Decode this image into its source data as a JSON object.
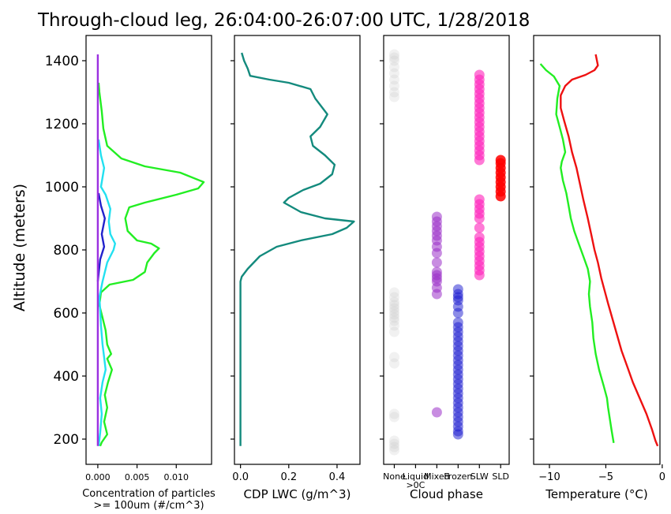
{
  "title": "Through-cloud leg, 26:04:00-26:07:00 UTC, 1/28/2018",
  "ylabel": "Altitude (meters)",
  "chart_data": [
    {
      "type": "line",
      "panel": "concentration",
      "xlabel_lines": [
        "Concentration of particles",
        ">= 100um (#/cm^3)"
      ],
      "xlim": [
        -0.0015,
        0.0145
      ],
      "xticks": [
        0,
        0.005,
        0.01
      ],
      "xtick_labels": [
        "0.000",
        "0.005",
        "0.010"
      ],
      "ylim": [
        120,
        1480
      ],
      "yticks": [
        200,
        400,
        600,
        800,
        1000,
        1200,
        1400
      ],
      "series": [
        {
          "color": "#22ee22",
          "points": [
            [
              0.0003,
              178
            ],
            [
              0.0005,
              190
            ],
            [
              0.0012,
              215
            ],
            [
              0.0008,
              255
            ],
            [
              0.0012,
              300
            ],
            [
              0.0009,
              340
            ],
            [
              0.0013,
              380
            ],
            [
              0.0018,
              420
            ],
            [
              0.0012,
              455
            ],
            [
              0.0017,
              470
            ],
            [
              0.0012,
              500
            ],
            [
              0.001,
              545
            ],
            [
              0.0006,
              585
            ],
            [
              0.0002,
              625
            ],
            [
              0.0004,
              665
            ],
            [
              0.0015,
              690
            ],
            [
              0.0045,
              705
            ],
            [
              0.006,
              730
            ],
            [
              0.0063,
              760
            ],
            [
              0.0072,
              790
            ],
            [
              0.0078,
              805
            ],
            [
              0.0068,
              820
            ],
            [
              0.005,
              830
            ],
            [
              0.0038,
              860
            ],
            [
              0.0035,
              900
            ],
            [
              0.004,
              935
            ],
            [
              0.006,
              950
            ],
            [
              0.01,
              975
            ],
            [
              0.0128,
              995
            ],
            [
              0.0135,
              1015
            ],
            [
              0.0105,
              1045
            ],
            [
              0.006,
              1065
            ],
            [
              0.003,
              1090
            ],
            [
              0.0012,
              1130
            ],
            [
              0.0007,
              1185
            ],
            [
              0.0005,
              1240
            ],
            [
              0.0002,
              1300
            ],
            [
              0.0001,
              1330
            ]
          ]
        },
        {
          "color": "#22e0f0",
          "points": [
            [
              0.0001,
              178
            ],
            [
              0.0003,
              220
            ],
            [
              0.0005,
              280
            ],
            [
              0.0003,
              330
            ],
            [
              0.0006,
              380
            ],
            [
              0.001,
              420
            ],
            [
              0.0008,
              460
            ],
            [
              0.0006,
              500
            ],
            [
              0.0004,
              560
            ],
            [
              0.0003,
              610
            ],
            [
              0.0002,
              650
            ],
            [
              0.0006,
              700
            ],
            [
              0.0012,
              760
            ],
            [
              0.002,
              800
            ],
            [
              0.0022,
              820
            ],
            [
              0.0016,
              850
            ],
            [
              0.0014,
              890
            ],
            [
              0.0016,
              930
            ],
            [
              0.001,
              975
            ],
            [
              0.0004,
              1000
            ],
            [
              0.0006,
              1030
            ],
            [
              0.0008,
              1060
            ],
            [
              0.0004,
              1100
            ],
            [
              0.0001,
              1150
            ]
          ]
        },
        {
          "color": "#2222cc",
          "points": [
            [
              0.0,
              700
            ],
            [
              0.0003,
              770
            ],
            [
              0.0008,
              810
            ],
            [
              0.0005,
              850
            ],
            [
              0.0009,
              900
            ],
            [
              0.0004,
              940
            ],
            [
              0.0001,
              980
            ]
          ]
        },
        {
          "color": "#9b30e0",
          "points": [
            [
              0.0,
              178
            ],
            [
              0.0,
              1420
            ]
          ]
        }
      ]
    },
    {
      "type": "line",
      "panel": "lwc",
      "xlabel": "CDP LWC (g/m^3)",
      "xlim": [
        -0.025,
        0.495
      ],
      "xticks": [
        0,
        0.2,
        0.4
      ],
      "xtick_labels": [
        "0.0",
        "0.2",
        "0.4"
      ],
      "ylim": [
        120,
        1480
      ],
      "series": [
        {
          "color": "#138a7d",
          "points": [
            [
              0.0,
              178
            ],
            [
              0.0,
              450
            ],
            [
              0.0,
              700
            ],
            [
              0.005,
              715
            ],
            [
              0.03,
              740
            ],
            [
              0.08,
              780
            ],
            [
              0.15,
              810
            ],
            [
              0.25,
              830
            ],
            [
              0.38,
              850
            ],
            [
              0.44,
              870
            ],
            [
              0.47,
              890
            ],
            [
              0.35,
              900
            ],
            [
              0.25,
              920
            ],
            [
              0.18,
              950
            ],
            [
              0.2,
              965
            ],
            [
              0.26,
              990
            ],
            [
              0.33,
              1010
            ],
            [
              0.38,
              1040
            ],
            [
              0.39,
              1070
            ],
            [
              0.35,
              1100
            ],
            [
              0.3,
              1130
            ],
            [
              0.29,
              1160
            ],
            [
              0.33,
              1190
            ],
            [
              0.36,
              1230
            ],
            [
              0.31,
              1280
            ],
            [
              0.29,
              1310
            ],
            [
              0.2,
              1330
            ],
            [
              0.12,
              1340
            ],
            [
              0.04,
              1352
            ],
            [
              0.03,
              1375
            ],
            [
              0.015,
              1400
            ],
            [
              0.005,
              1425
            ]
          ]
        }
      ]
    },
    {
      "type": "scatter",
      "panel": "phase",
      "xlabel": "Cloud phase",
      "categories": [
        "None",
        "Liquid\n>0C",
        "Mixed",
        "Frozen",
        "SLW",
        "SLD"
      ],
      "ylim": [
        120,
        1480
      ],
      "groups": [
        {
          "category": "None",
          "color": "#c8c8c8",
          "alpha": 0.25,
          "altitudes": [
            165,
            175,
            185,
            195,
            270,
            280,
            440,
            460,
            540,
            560,
            575,
            585,
            595,
            605,
            615,
            625,
            635,
            650,
            665,
            1285,
            1300,
            1320,
            1340,
            1360,
            1380,
            1400,
            1410,
            1420
          ]
        },
        {
          "category": "Mixed",
          "color": "#9b30c8",
          "alpha": 0.55,
          "altitudes": [
            285,
            660,
            680,
            700,
            710,
            720,
            730,
            760,
            790,
            810,
            830,
            845,
            860,
            875,
            890,
            905
          ]
        },
        {
          "category": "Frozen",
          "color": "#1a1ad0",
          "alpha": 0.5,
          "altitudes": [
            215,
            225,
            240,
            255,
            270,
            285,
            300,
            315,
            330,
            345,
            360,
            375,
            390,
            405,
            420,
            435,
            450,
            465,
            480,
            495,
            510,
            525,
            540,
            555,
            570,
            600,
            620,
            640,
            650,
            660,
            675
          ]
        },
        {
          "category": "SLW",
          "color": "#ff22bb",
          "alpha": 0.6,
          "altitudes": [
            720,
            735,
            750,
            765,
            780,
            795,
            810,
            825,
            840,
            870,
            900,
            915,
            930,
            945,
            960,
            1085,
            1100,
            1115,
            1130,
            1145,
            1160,
            1175,
            1190,
            1205,
            1220,
            1235,
            1250,
            1265,
            1280,
            1295,
            1310,
            1325,
            1340,
            1355
          ]
        },
        {
          "category": "SLD",
          "color": "#ff0000",
          "alpha": 0.85,
          "altitudes": [
            970,
            985,
            1000,
            1015,
            1030,
            1045,
            1060,
            1075,
            1085
          ]
        }
      ]
    },
    {
      "type": "line",
      "panel": "temperature",
      "xlabel": "Temperature (°C)",
      "xlim": [
        -11.4,
        -0.2
      ],
      "xticks": [
        -10,
        -5,
        0
      ],
      "xtick_labels": [
        "−10",
        "−5",
        "0"
      ],
      "ylim": [
        120,
        1480
      ],
      "series": [
        {
          "color": "#22ee22",
          "points": [
            [
              -4.3,
              188
            ],
            [
              -4.5,
              230
            ],
            [
              -4.8,
              300
            ],
            [
              -4.9,
              330
            ],
            [
              -5.2,
              370
            ],
            [
              -5.6,
              420
            ],
            [
              -5.9,
              470
            ],
            [
              -6.1,
              520
            ],
            [
              -6.2,
              570
            ],
            [
              -6.4,
              620
            ],
            [
              -6.5,
              660
            ],
            [
              -6.4,
              700
            ],
            [
              -6.6,
              740
            ],
            [
              -7.0,
              780
            ],
            [
              -7.4,
              820
            ],
            [
              -7.8,
              860
            ],
            [
              -8.1,
              900
            ],
            [
              -8.3,
              940
            ],
            [
              -8.5,
              980
            ],
            [
              -8.8,
              1020
            ],
            [
              -9.0,
              1060
            ],
            [
              -8.9,
              1080
            ],
            [
              -8.6,
              1110
            ],
            [
              -8.8,
              1150
            ],
            [
              -9.1,
              1190
            ],
            [
              -9.4,
              1230
            ],
            [
              -9.3,
              1280
            ],
            [
              -9.1,
              1320
            ],
            [
              -9.6,
              1350
            ],
            [
              -10.3,
              1370
            ],
            [
              -10.8,
              1390
            ]
          ]
        },
        {
          "color": "#ee1111",
          "points": [
            [
              -0.4,
              178
            ],
            [
              -0.6,
              195
            ],
            [
              -0.9,
              230
            ],
            [
              -1.4,
              280
            ],
            [
              -2.0,
              330
            ],
            [
              -2.6,
              380
            ],
            [
              -3.1,
              430
            ],
            [
              -3.6,
              480
            ],
            [
              -4.0,
              530
            ],
            [
              -4.4,
              580
            ],
            [
              -4.8,
              630
            ],
            [
              -5.1,
              670
            ],
            [
              -5.4,
              710
            ],
            [
              -5.7,
              760
            ],
            [
              -6.0,
              800
            ],
            [
              -6.3,
              850
            ],
            [
              -6.6,
              900
            ],
            [
              -7.0,
              960
            ],
            [
              -7.3,
              1010
            ],
            [
              -7.6,
              1060
            ],
            [
              -8.0,
              1110
            ],
            [
              -8.3,
              1160
            ],
            [
              -8.7,
              1210
            ],
            [
              -9.0,
              1250
            ],
            [
              -9.0,
              1290
            ],
            [
              -8.6,
              1320
            ],
            [
              -8.0,
              1340
            ],
            [
              -6.8,
              1355
            ],
            [
              -6.0,
              1370
            ],
            [
              -5.7,
              1385
            ],
            [
              -5.9,
              1420
            ]
          ]
        }
      ]
    }
  ]
}
